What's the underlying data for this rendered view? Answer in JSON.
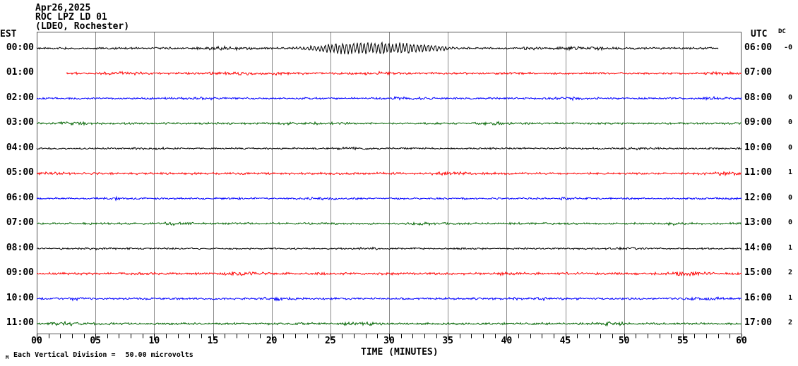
{
  "header": {
    "date": "Apr26,2025",
    "station": "ROC LPZ LD 01",
    "location": "(LDEO, Rochester)"
  },
  "left_axis": {
    "label": "EST"
  },
  "right_axis": {
    "label": "UTC"
  },
  "dc_column": {
    "label": "DC"
  },
  "x_axis": {
    "label": "TIME (MINUTES)",
    "range_minutes": [
      0,
      60
    ],
    "major_tick_every": 5,
    "minor_tick_every": 1,
    "ticks": [
      "00",
      "05",
      "10",
      "15",
      "20",
      "25",
      "30",
      "35",
      "40",
      "45",
      "50",
      "55",
      "60"
    ]
  },
  "footer": {
    "watermark": "M",
    "scale_label": "Each Vertical Division =",
    "scale_value": "50.00 microvolts"
  },
  "chart_data": {
    "type": "line",
    "title": "ROC LPZ LD 01 (LDEO, Rochester) helicorder, Apr26,2025",
    "x_range_minutes": [
      0,
      60
    ],
    "grid": "vertical lines every 5 minutes",
    "grid_color": "#8a8a8a",
    "border_color": "#555555",
    "colors_cycle": [
      "#000000",
      "#ff0000",
      "#0000ff",
      "#006400"
    ],
    "rows": [
      {
        "est": "00:00",
        "utc": "06:00",
        "dc": "-0",
        "color": "#000000",
        "start_min": 0,
        "end_min": 58,
        "seed": 11,
        "base_amp": 1.7,
        "bursts": [
          {
            "start": 13,
            "end": 19,
            "amp": 1.4
          },
          {
            "start": 21.5,
            "end": 36,
            "amp": 7.5,
            "osc": true
          },
          {
            "start": 40,
            "end": 50,
            "amp": 1.1
          }
        ]
      },
      {
        "est": "01:00",
        "utc": "07:00",
        "dc": "",
        "color": "#ff0000",
        "start_min": 2.5,
        "end_min": 60,
        "seed": 22,
        "base_amp": 1.6,
        "bursts": [
          {
            "start": 5,
            "end": 10,
            "amp": 1.0
          },
          {
            "start": 14,
            "end": 24,
            "amp": 1.2
          },
          {
            "start": 26,
            "end": 31,
            "amp": 1.4
          },
          {
            "start": 56,
            "end": 60,
            "amp": 1.3
          }
        ]
      },
      {
        "est": "02:00",
        "utc": "08:00",
        "dc": "0",
        "color": "#0000ff",
        "start_min": 0,
        "end_min": 60,
        "seed": 33,
        "base_amp": 1.5,
        "bursts": [
          {
            "start": 12,
            "end": 17,
            "amp": 1.1
          },
          {
            "start": 29,
            "end": 34,
            "amp": 1.3
          },
          {
            "start": 43,
            "end": 48,
            "amp": 1.2
          },
          {
            "start": 56,
            "end": 60,
            "amp": 1.4
          }
        ]
      },
      {
        "est": "03:00",
        "utc": "09:00",
        "dc": "0",
        "color": "#006400",
        "start_min": 0,
        "end_min": 60,
        "seed": 44,
        "base_amp": 1.6,
        "bursts": [
          {
            "start": 1,
            "end": 5,
            "amp": 1.4
          },
          {
            "start": 20,
            "end": 26,
            "amp": 1.0
          },
          {
            "start": 37,
            "end": 41,
            "amp": 1.2
          }
        ]
      },
      {
        "est": "04:00",
        "utc": "10:00",
        "dc": "0",
        "color": "#000000",
        "start_min": 0,
        "end_min": 60,
        "seed": 55,
        "base_amp": 1.4,
        "bursts": [
          {
            "start": 8,
            "end": 12,
            "amp": 0.9
          },
          {
            "start": 25,
            "end": 29,
            "amp": 1.0
          },
          {
            "start": 50,
            "end": 54,
            "amp": 1.1
          }
        ]
      },
      {
        "est": "05:00",
        "utc": "11:00",
        "dc": "1",
        "color": "#ff0000",
        "start_min": 0,
        "end_min": 60,
        "seed": 66,
        "base_amp": 1.8,
        "bursts": [
          {
            "start": 0,
            "end": 3,
            "amp": 1.1
          },
          {
            "start": 33,
            "end": 37,
            "amp": 1.1
          },
          {
            "start": 56,
            "end": 60,
            "amp": 1.4
          }
        ]
      },
      {
        "est": "06:00",
        "utc": "12:00",
        "dc": "0",
        "color": "#0000ff",
        "start_min": 0,
        "end_min": 60,
        "seed": 77,
        "base_amp": 1.5,
        "bursts": [
          {
            "start": 5,
            "end": 8,
            "amp": 1.0
          },
          {
            "start": 22,
            "end": 26,
            "amp": 1.1
          },
          {
            "start": 44,
            "end": 47,
            "amp": 1.0
          }
        ]
      },
      {
        "est": "07:00",
        "utc": "13:00",
        "dc": "0",
        "color": "#006400",
        "start_min": 0,
        "end_min": 60,
        "seed": 88,
        "base_amp": 1.6,
        "bursts": [
          {
            "start": 10,
            "end": 14,
            "amp": 1.1
          },
          {
            "start": 31,
            "end": 35,
            "amp": 1.0
          },
          {
            "start": 52,
            "end": 56,
            "amp": 1.2
          }
        ]
      },
      {
        "est": "08:00",
        "utc": "14:00",
        "dc": "1",
        "color": "#000000",
        "start_min": 0,
        "end_min": 60,
        "seed": 99,
        "base_amp": 1.4,
        "bursts": [
          {
            "start": 3,
            "end": 6,
            "amp": 1.0
          },
          {
            "start": 27,
            "end": 30,
            "amp": 1.0
          },
          {
            "start": 48,
            "end": 52,
            "amp": 1.2
          }
        ]
      },
      {
        "est": "09:00",
        "utc": "15:00",
        "dc": "2",
        "color": "#ff0000",
        "start_min": 0,
        "end_min": 60,
        "seed": 110,
        "base_amp": 1.9,
        "bursts": [
          {
            "start": 15,
            "end": 20,
            "amp": 1.2
          },
          {
            "start": 38,
            "end": 42,
            "amp": 1.1
          },
          {
            "start": 53,
            "end": 58,
            "amp": 1.5
          }
        ]
      },
      {
        "est": "10:00",
        "utc": "16:00",
        "dc": "1",
        "color": "#0000ff",
        "start_min": 0,
        "end_min": 60,
        "seed": 121,
        "base_amp": 1.6,
        "bursts": [
          {
            "start": 2,
            "end": 5,
            "amp": 1.2
          },
          {
            "start": 18,
            "end": 23,
            "amp": 1.3
          },
          {
            "start": 40,
            "end": 45,
            "amp": 1.3
          },
          {
            "start": 55,
            "end": 59,
            "amp": 1.4
          }
        ]
      },
      {
        "est": "11:00",
        "utc": "17:00",
        "dc": "2",
        "color": "#006400",
        "start_min": 0,
        "end_min": 60,
        "seed": 132,
        "base_amp": 1.7,
        "bursts": [
          {
            "start": 1,
            "end": 4,
            "amp": 1.8
          },
          {
            "start": 25,
            "end": 30,
            "amp": 1.1
          },
          {
            "start": 47,
            "end": 51,
            "amp": 1.2
          }
        ]
      }
    ]
  }
}
